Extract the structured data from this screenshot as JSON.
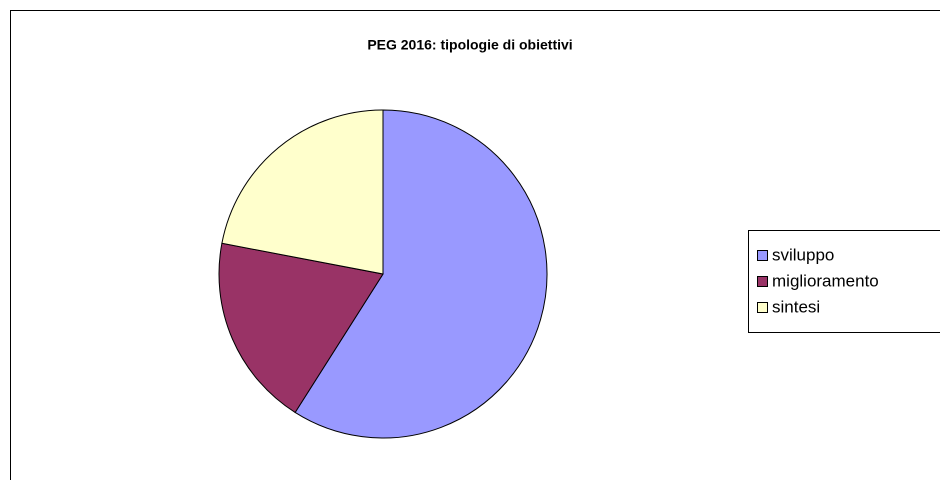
{
  "chart_data": {
    "type": "pie",
    "title": "PEG 2016: tipologie di obiettivi",
    "categories": [
      "sviluppo",
      "miglioramento",
      "sintesi"
    ],
    "values": [
      59,
      19,
      22
    ],
    "colors": [
      "#9999ff",
      "#993366",
      "#ffffcc"
    ],
    "legend": "right"
  }
}
